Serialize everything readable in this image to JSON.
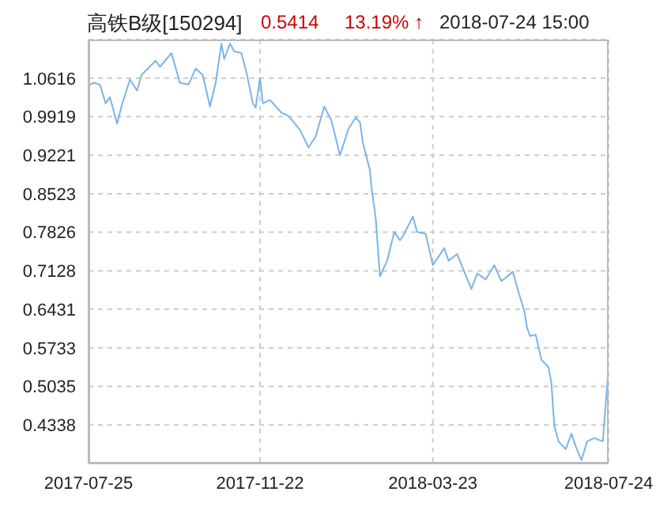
{
  "chart_data": {
    "type": "line",
    "title": "高铁B级[150294]",
    "annotations": [
      "0.5414",
      "13.19% ↑",
      "2018-07-24 15:00"
    ],
    "x": [
      "2017-07-26",
      "2017-07-29",
      "2017-08-02",
      "2017-08-06",
      "2017-08-09",
      "2017-08-14",
      "2017-08-17",
      "2017-08-23",
      "2017-08-28",
      "2017-08-31",
      "2017-09-10",
      "2017-09-13",
      "2017-09-21",
      "2017-09-27",
      "2017-10-03",
      "2017-10-08",
      "2017-10-13",
      "2017-10-18",
      "2017-10-22",
      "2017-10-26",
      "2017-10-28",
      "2017-11-01",
      "2017-11-04",
      "2017-11-09",
      "2017-11-13",
      "2017-11-17",
      "2017-11-19",
      "2017-11-22",
      "2017-11-24",
      "2017-11-29",
      "2017-12-07",
      "2017-12-12",
      "2017-12-20",
      "2017-12-26",
      "2017-12-31",
      "2018-01-06",
      "2018-01-11",
      "2018-01-17",
      "2018-01-23",
      "2018-01-28",
      "2018-01-31",
      "2018-02-02",
      "2018-02-07",
      "2018-02-08",
      "2018-02-11",
      "2018-02-14",
      "2018-02-19",
      "2018-02-24",
      "2018-02-28",
      "2018-03-03",
      "2018-03-09",
      "2018-03-12",
      "2018-03-18",
      "2018-03-23",
      "2018-03-31",
      "2018-04-03",
      "2018-04-09",
      "2018-04-14",
      "2018-04-19",
      "2018-04-23",
      "2018-04-29",
      "2018-05-05",
      "2018-05-10",
      "2018-05-18",
      "2018-05-22",
      "2018-05-26",
      "2018-05-28",
      "2018-05-30",
      "2018-06-03",
      "2018-06-07",
      "2018-06-12",
      "2018-06-14",
      "2018-06-16",
      "2018-06-19",
      "2018-06-24",
      "2018-06-28",
      "2018-07-01",
      "2018-07-05",
      "2018-07-09",
      "2018-07-14",
      "2018-07-20",
      "2018-07-24"
    ],
    "series": [
      {
        "color": "#7ab4ea",
        "values": [
          1.05,
          1.053,
          1.05,
          1.016,
          1.027,
          0.979,
          1.01,
          1.059,
          1.039,
          1.067,
          1.093,
          1.082,
          1.107,
          1.053,
          1.05,
          1.079,
          1.067,
          1.01,
          1.053,
          1.124,
          1.096,
          1.124,
          1.11,
          1.107,
          1.067,
          1.016,
          1.008,
          1.062,
          1.016,
          1.022,
          0.999,
          0.993,
          0.968,
          0.936,
          0.956,
          1.01,
          0.985,
          0.922,
          0.97,
          0.99,
          0.982,
          0.945,
          0.894,
          0.865,
          0.808,
          0.703,
          0.731,
          0.783,
          0.768,
          0.78,
          0.811,
          0.783,
          0.78,
          0.723,
          0.754,
          0.731,
          0.743,
          0.711,
          0.68,
          0.708,
          0.697,
          0.723,
          0.694,
          0.711,
          0.674,
          0.64,
          0.609,
          0.595,
          0.597,
          0.552,
          0.538,
          0.509,
          0.432,
          0.404,
          0.39,
          0.418,
          0.395,
          0.37,
          0.404,
          0.41,
          0.404,
          0.5414
        ]
      }
    ],
    "xlim": [
      "2017-07-25",
      "2018-07-24"
    ],
    "xticks": [
      "2017-07-25",
      "2017-11-22",
      "2018-03-23",
      "2018-07-24"
    ],
    "ylim": [
      0.364,
      1.1314
    ],
    "yticks": [
      0.4338,
      0.5035,
      0.5733,
      0.6431,
      0.7128,
      0.7826,
      0.8523,
      0.9221,
      0.9919,
      1.0616
    ],
    "grid": true,
    "line_style": "solid",
    "marker": "none",
    "legend": false
  }
}
